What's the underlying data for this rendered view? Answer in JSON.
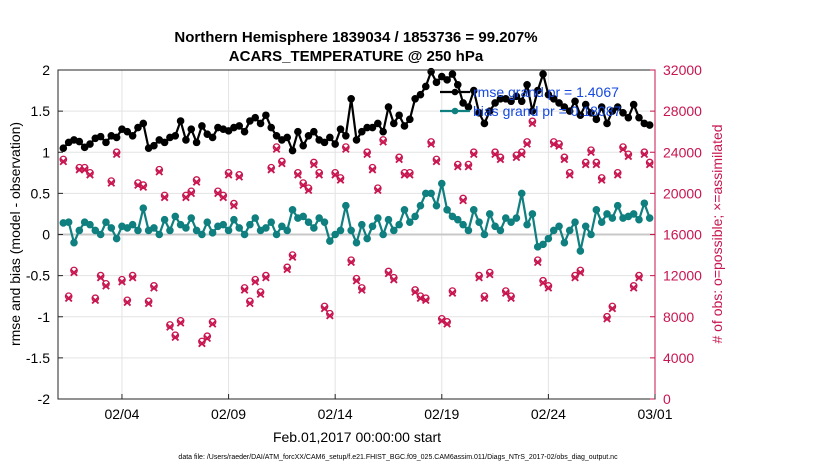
{
  "chart_data": {
    "type": "line",
    "title": "Northern Hemisphere 1839034 / 1853736 = 99.207%",
    "subtitle": "ACARS_TEMPERATURE @ 250 hPa",
    "xlabel": "Feb.01,2017 00:00:00 start",
    "ylabel": "rmse and bias (model - observation)",
    "ylabel_right": "# of obs: o=possible; ×=assimilated",
    "xlim": [
      0,
      28
    ],
    "ylim": [
      -2,
      2
    ],
    "ylim_right": [
      0,
      32000
    ],
    "x_ticks": [
      {
        "x": 3,
        "label": "02/04"
      },
      {
        "x": 8,
        "label": "02/09"
      },
      {
        "x": 13,
        "label": "02/14"
      },
      {
        "x": 18,
        "label": "02/19"
      },
      {
        "x": 23,
        "label": "02/24"
      },
      {
        "x": 28,
        "label": "03/01"
      }
    ],
    "y_ticks": [
      "-2",
      "-1.5",
      "-1",
      "-0.5",
      "0",
      "0.5",
      "1",
      "1.5",
      "2"
    ],
    "y_right_ticks": [
      "0",
      "4000",
      "8000",
      "12000",
      "16000",
      "20000",
      "24000",
      "28000",
      "32000"
    ],
    "grid": true,
    "legend_position": "top-right",
    "colors": {
      "rmse": "#000000",
      "bias": "#0f7f7f",
      "obs": "#c8154f",
      "zero_line": "#c8c8c8",
      "legend_text": "#1448e0"
    },
    "series": [
      {
        "name": "rmse grand pr = 1.4067",
        "x": [
          0.25,
          0.5,
          0.75,
          1.0,
          1.25,
          1.5,
          1.75,
          2.0,
          2.25,
          2.5,
          2.75,
          3.0,
          3.25,
          3.5,
          3.75,
          4.0,
          4.25,
          4.5,
          4.75,
          5.0,
          5.25,
          5.5,
          5.75,
          6.0,
          6.25,
          6.5,
          6.75,
          7.0,
          7.25,
          7.5,
          7.75,
          8.0,
          8.25,
          8.5,
          8.75,
          9.0,
          9.25,
          9.5,
          9.75,
          10.0,
          10.25,
          10.5,
          10.75,
          11.0,
          11.25,
          11.5,
          11.75,
          12.0,
          12.25,
          12.5,
          12.75,
          13.0,
          13.25,
          13.5,
          13.75,
          14.0,
          14.25,
          14.5,
          14.75,
          15.0,
          15.25,
          15.5,
          15.75,
          16.0,
          16.25,
          16.5,
          16.75,
          17.0,
          17.25,
          17.5,
          17.75,
          18.0,
          18.25,
          18.5,
          18.75,
          19.0,
          19.25,
          19.5,
          19.75,
          20.0,
          20.25,
          20.5,
          20.75,
          21.0,
          21.25,
          21.5,
          21.75,
          22.0,
          22.25,
          22.5,
          22.75,
          23.0,
          23.25,
          23.5,
          23.75,
          24.0,
          24.25,
          24.5,
          24.75,
          25.0,
          25.25,
          25.5,
          25.75,
          26.0,
          26.25,
          26.5,
          26.75,
          27.0,
          27.25,
          27.5,
          27.75
        ],
        "values": [
          1.05,
          1.12,
          1.15,
          1.13,
          1.06,
          1.1,
          1.17,
          1.19,
          1.12,
          1.2,
          1.18,
          1.28,
          1.25,
          1.2,
          1.3,
          1.35,
          1.05,
          1.08,
          1.15,
          1.12,
          1.18,
          1.2,
          1.38,
          1.15,
          1.28,
          1.12,
          1.32,
          1.22,
          1.18,
          1.3,
          1.28,
          1.26,
          1.3,
          1.32,
          1.25,
          1.38,
          1.42,
          1.35,
          1.45,
          1.3,
          1.2,
          1.15,
          1.18,
          1.02,
          1.25,
          1.08,
          1.2,
          1.25,
          1.15,
          1.12,
          1.18,
          1.1,
          1.28,
          1.2,
          1.65,
          1.15,
          1.25,
          1.3,
          1.3,
          1.35,
          1.25,
          1.55,
          1.35,
          1.45,
          1.32,
          1.4,
          1.65,
          1.7,
          1.8,
          1.98,
          1.85,
          1.92,
          1.88,
          1.95,
          1.82,
          1.6,
          1.55,
          1.75,
          1.48,
          1.35,
          1.5,
          1.6,
          1.65,
          1.65,
          1.62,
          1.68,
          1.62,
          1.82,
          1.5,
          1.75,
          1.95,
          1.7,
          1.65,
          1.6,
          1.55,
          1.5,
          1.62,
          1.45,
          1.58,
          1.48,
          1.4,
          1.55,
          1.35,
          1.5,
          1.55,
          1.48,
          1.42,
          1.58,
          1.42,
          1.35,
          1.33
        ]
      },
      {
        "name": "bias grand pr = 0.18087",
        "x": [
          0.25,
          0.5,
          0.75,
          1.0,
          1.25,
          1.5,
          1.75,
          2.0,
          2.25,
          2.5,
          2.75,
          3.0,
          3.25,
          3.5,
          3.75,
          4.0,
          4.25,
          4.5,
          4.75,
          5.0,
          5.25,
          5.5,
          5.75,
          6.0,
          6.25,
          6.5,
          6.75,
          7.0,
          7.25,
          7.5,
          7.75,
          8.0,
          8.25,
          8.5,
          8.75,
          9.0,
          9.25,
          9.5,
          9.75,
          10.0,
          10.25,
          10.5,
          10.75,
          11.0,
          11.25,
          11.5,
          11.75,
          12.0,
          12.25,
          12.5,
          12.75,
          13.0,
          13.25,
          13.5,
          13.75,
          14.0,
          14.25,
          14.5,
          14.75,
          15.0,
          15.25,
          15.5,
          15.75,
          16.0,
          16.25,
          16.5,
          16.75,
          17.0,
          17.25,
          17.5,
          17.75,
          18.0,
          18.25,
          18.5,
          18.75,
          19.0,
          19.25,
          19.5,
          19.75,
          20.0,
          20.25,
          20.5,
          20.75,
          21.0,
          21.25,
          21.5,
          21.75,
          22.0,
          22.25,
          22.5,
          22.75,
          23.0,
          23.25,
          23.5,
          23.75,
          24.0,
          24.25,
          24.5,
          24.75,
          25.0,
          25.25,
          25.5,
          25.75,
          26.0,
          26.25,
          26.5,
          26.75,
          27.0,
          27.25,
          27.5,
          27.75
        ],
        "values": [
          0.14,
          0.15,
          -0.1,
          0.05,
          0.15,
          0.12,
          0.05,
          0.0,
          0.15,
          0.08,
          -0.05,
          0.1,
          0.08,
          0.12,
          0.05,
          0.32,
          0.05,
          0.08,
          0.0,
          0.18,
          0.05,
          0.22,
          0.12,
          0.08,
          0.2,
          0.05,
          0.0,
          0.15,
          0.02,
          0.1,
          0.12,
          0.05,
          0.18,
          0.08,
          0.0,
          0.12,
          0.2,
          0.05,
          0.08,
          0.15,
          0.0,
          0.1,
          0.05,
          0.3,
          0.2,
          0.22,
          0.15,
          0.08,
          0.2,
          0.15,
          -0.08,
          0.0,
          0.05,
          0.35,
          0.05,
          -0.1,
          0.12,
          -0.05,
          0.1,
          0.2,
          0.0,
          0.18,
          0.05,
          0.12,
          0.3,
          0.15,
          0.22,
          0.35,
          0.5,
          0.5,
          0.35,
          0.62,
          0.3,
          0.22,
          0.18,
          0.12,
          0.05,
          0.3,
          0.15,
          0.0,
          0.25,
          0.1,
          0.05,
          0.2,
          0.15,
          0.2,
          0.5,
          0.12,
          0.25,
          -0.15,
          -0.12,
          -0.05,
          0.05,
          0.1,
          -0.1,
          0.05,
          0.15,
          -0.2,
          0.1,
          0.0,
          0.3,
          0.15,
          0.25,
          0.2,
          0.35,
          0.2,
          0.22,
          0.25,
          0.18,
          0.38,
          0.2
        ]
      },
      {
        "name": "possible",
        "x": [
          0.25,
          0.5,
          0.75,
          1.0,
          1.25,
          1.5,
          1.75,
          2.0,
          2.25,
          2.5,
          2.75,
          3.0,
          3.25,
          3.5,
          3.75,
          4.0,
          4.25,
          4.5,
          4.75,
          5.0,
          5.25,
          5.5,
          5.75,
          6.0,
          6.25,
          6.5,
          6.75,
          7.0,
          7.25,
          7.5,
          7.75,
          8.0,
          8.25,
          8.5,
          8.75,
          9.0,
          9.25,
          9.5,
          9.75,
          10.0,
          10.25,
          10.5,
          10.75,
          11.0,
          11.25,
          11.5,
          11.75,
          12.0,
          12.25,
          12.5,
          12.75,
          13.0,
          13.25,
          13.5,
          13.75,
          14.0,
          14.25,
          14.5,
          14.75,
          15.0,
          15.25,
          15.5,
          15.75,
          16.0,
          16.25,
          16.5,
          16.75,
          17.0,
          17.25,
          17.5,
          17.75,
          18.0,
          18.25,
          18.5,
          18.75,
          19.0,
          19.25,
          19.5,
          19.75,
          20.0,
          20.25,
          20.5,
          20.75,
          21.0,
          21.25,
          21.5,
          21.75,
          22.0,
          22.25,
          22.5,
          22.75,
          23.0,
          23.25,
          23.5,
          23.75,
          24.0,
          24.25,
          24.5,
          24.75,
          25.0,
          25.25,
          25.5,
          25.75,
          26.0,
          26.25,
          26.5,
          26.75,
          27.0,
          27.25,
          27.5,
          27.75
        ],
        "values": [
          23300,
          10000,
          12500,
          22500,
          22500,
          22000,
          9800,
          12000,
          11200,
          21200,
          24000,
          11600,
          9600,
          12000,
          21000,
          20800,
          9500,
          11000,
          22300,
          19800,
          7200,
          6200,
          7600,
          19800,
          20200,
          21300,
          5600,
          6100,
          7500,
          20200,
          19800,
          22000,
          19000,
          21800,
          10800,
          9500,
          11600,
          10400,
          12000,
          22500,
          24500,
          23100,
          12800,
          14000,
          22000,
          21000,
          20500,
          23000,
          22000,
          9000,
          8300,
          22000,
          21500,
          24500,
          13500,
          11700,
          10800,
          24000,
          22500,
          20500,
          25200,
          12400,
          11800,
          23500,
          22000,
          22000,
          10600,
          10000,
          9800,
          25000,
          23300,
          7800,
          7500,
          10500,
          22800,
          19500,
          22800,
          24000,
          12000,
          10000,
          12300,
          24000,
          23500,
          10500,
          10000,
          23700,
          24000,
          25000,
          27000,
          13500,
          11500,
          11000,
          25000,
          24800,
          23500,
          22000,
          12000,
          12500,
          23000,
          24200,
          23000,
          21500,
          8000,
          9000,
          22000,
          24500,
          23800,
          11000,
          12000,
          24000,
          23000
        ]
      },
      {
        "name": "assimilated",
        "x": [
          0.25,
          0.5,
          0.75,
          1.0,
          1.25,
          1.5,
          1.75,
          2.0,
          2.25,
          2.5,
          2.75,
          3.0,
          3.25,
          3.5,
          3.75,
          4.0,
          4.25,
          4.5,
          4.75,
          5.0,
          5.25,
          5.5,
          5.75,
          6.0,
          6.25,
          6.5,
          6.75,
          7.0,
          7.25,
          7.5,
          7.75,
          8.0,
          8.25,
          8.5,
          8.75,
          9.0,
          9.25,
          9.5,
          9.75,
          10.0,
          10.25,
          10.5,
          10.75,
          11.0,
          11.25,
          11.5,
          11.75,
          12.0,
          12.25,
          12.5,
          12.75,
          13.0,
          13.25,
          13.5,
          13.75,
          14.0,
          14.25,
          14.5,
          14.75,
          15.0,
          15.25,
          15.5,
          15.75,
          16.0,
          16.25,
          16.5,
          16.75,
          17.0,
          17.25,
          17.5,
          17.75,
          18.0,
          18.25,
          18.5,
          18.75,
          19.0,
          19.25,
          19.5,
          19.75,
          20.0,
          20.25,
          20.5,
          20.75,
          21.0,
          21.25,
          21.5,
          21.75,
          22.0,
          22.25,
          22.5,
          22.75,
          23.0,
          23.25,
          23.5,
          23.75,
          24.0,
          24.25,
          24.5,
          24.75,
          25.0,
          25.25,
          25.5,
          25.75,
          26.0,
          26.25,
          26.5,
          26.75,
          27.0,
          27.25,
          27.5,
          27.75
        ],
        "values": [
          23100,
          9800,
          12300,
          22300,
          22300,
          21800,
          9600,
          11800,
          11000,
          21000,
          23800,
          11400,
          9400,
          11800,
          20800,
          20600,
          9300,
          10800,
          22100,
          19600,
          7000,
          6000,
          7400,
          19600,
          20000,
          21100,
          5400,
          5900,
          7300,
          20000,
          19600,
          21800,
          18800,
          21600,
          10600,
          9300,
          11400,
          10200,
          11800,
          22300,
          24300,
          22900,
          12600,
          13800,
          21800,
          20800,
          20300,
          22800,
          21800,
          8800,
          8100,
          21800,
          21300,
          24300,
          13300,
          11500,
          10600,
          23800,
          22300,
          20300,
          25000,
          12200,
          11600,
          23300,
          21800,
          21800,
          10400,
          9800,
          9600,
          24800,
          23100,
          7600,
          7300,
          10300,
          22600,
          19300,
          22600,
          23800,
          11800,
          9800,
          12100,
          23800,
          23300,
          10300,
          9800,
          23500,
          23800,
          24800,
          26800,
          13300,
          11300,
          10800,
          24800,
          24600,
          23300,
          21800,
          11800,
          12300,
          22800,
          24000,
          22800,
          21300,
          7800,
          8800,
          21800,
          24300,
          23600,
          10800,
          11800,
          23800,
          22800
        ]
      }
    ]
  },
  "footer": "data file: /Users/raeder/DAI/ATM_forcXX/CAM6_setup/f.e21.FHIST_BGC.f09_025.CAM6assim.011/Diags_NTrS_2017-02/obs_diag_output.nc"
}
